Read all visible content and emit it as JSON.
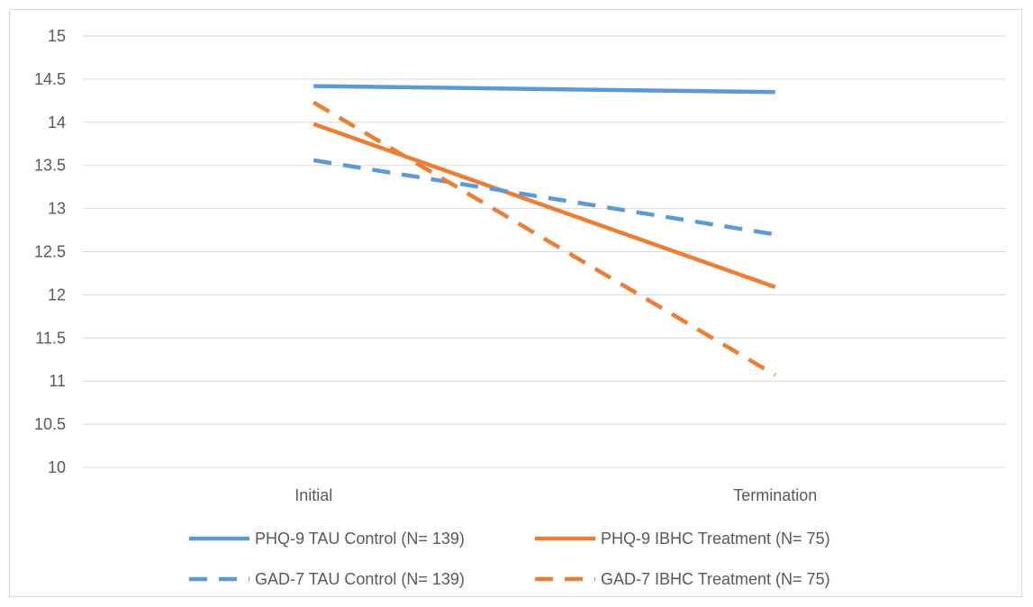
{
  "chart_data": {
    "type": "line",
    "title": "",
    "xlabel": "",
    "ylabel": "",
    "categories": [
      "Initial",
      "Termination"
    ],
    "ylim": [
      10,
      15
    ],
    "y_ticks": [
      "10",
      "10.5",
      "11",
      "11.5",
      "12",
      "12.5",
      "13",
      "13.5",
      "14",
      "14.5",
      "15"
    ],
    "grid": true,
    "legend_position": "bottom",
    "series": [
      {
        "name": "PHQ-9 TAU Control (N= 139)",
        "values": [
          14.42,
          14.35
        ],
        "color": "#5b9bd5",
        "dash": "solid"
      },
      {
        "name": "PHQ-9 IBHC Treatment (N= 75)",
        "values": [
          13.98,
          12.09
        ],
        "color": "#ed7d31",
        "dash": "solid"
      },
      {
        "name": "GAD-7 TAU Control (N= 139)",
        "values": [
          13.56,
          12.7
        ],
        "color": "#5b9bd5",
        "dash": "dashed"
      },
      {
        "name": "GAD-7 IBHC Treatment (N= 75)",
        "values": [
          14.23,
          11.07
        ],
        "color": "#ed7d31",
        "dash": "dashed"
      }
    ]
  }
}
